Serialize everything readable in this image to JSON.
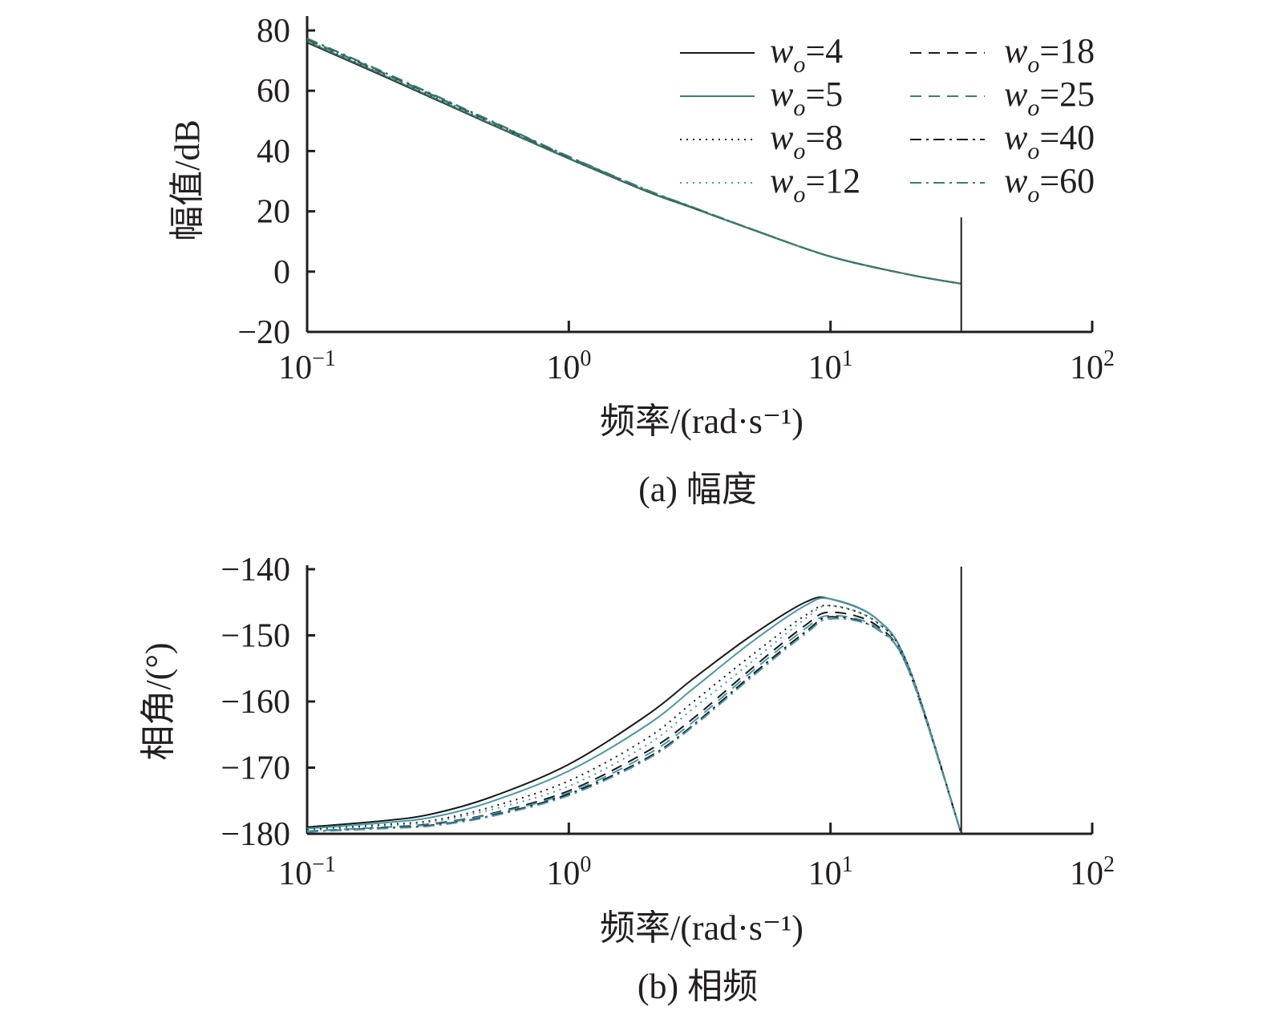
{
  "chart_data": [
    {
      "type": "line",
      "id": "magnitude",
      "caption": "(a) 幅度",
      "xlabel": "频率/(rad·s⁻¹)",
      "ylabel": "幅值/dB",
      "xscale": "log",
      "xlim": [
        0.1,
        100
      ],
      "ylim": [
        -20,
        80
      ],
      "yticks": [
        80,
        60,
        40,
        20,
        0,
        -20
      ],
      "ytick_labels": [
        "80",
        "60",
        "40",
        "20",
        "0",
        "−20"
      ],
      "xticks": [
        0.1,
        1,
        10,
        100
      ],
      "xtick_labels": [
        {
          "base": "10",
          "exp": "−1"
        },
        {
          "base": "10",
          "exp": "0"
        },
        {
          "base": "10",
          "exp": "1"
        },
        {
          "base": "10",
          "exp": "2"
        }
      ],
      "vline_x": 31.6,
      "vline_range": [
        18,
        -20
      ],
      "legend_position": "top-right",
      "x": [
        0.1,
        0.2,
        0.5,
        1,
        2,
        3,
        5,
        10,
        20,
        31.6
      ],
      "series": [
        {
          "name": "w_o=4",
          "label_var": "w",
          "label_sub": "o",
          "label_eq": "=4",
          "color": "#1a1a1a",
          "dash": "solid",
          "values": [
            76,
            64.5,
            49,
            37.5,
            26.5,
            21,
            14,
            5,
            -1,
            -4
          ]
        },
        {
          "name": "w_o=5",
          "label_var": "w",
          "label_sub": "o",
          "label_eq": "=5",
          "color": "#3a7f73",
          "dash": "solid",
          "values": [
            76.3,
            64.8,
            49.2,
            37.6,
            26.6,
            21,
            14,
            5,
            -1,
            -4
          ]
        },
        {
          "name": "w_o=8",
          "label_var": "w",
          "label_sub": "o",
          "label_eq": "=8",
          "color": "#1a1a1a",
          "dash": "dotted",
          "values": [
            76.6,
            65.1,
            49.5,
            37.8,
            26.7,
            21.1,
            14,
            5,
            -1,
            -4
          ]
        },
        {
          "name": "w_o=12",
          "label_var": "w",
          "label_sub": "o",
          "label_eq": "=12",
          "color": "#4f9e93",
          "dash": "dotted",
          "values": [
            76.8,
            65.3,
            49.7,
            37.9,
            26.8,
            21.1,
            14,
            5,
            -1,
            -4
          ]
        },
        {
          "name": "w_o=18",
          "label_var": "w",
          "label_sub": "o",
          "label_eq": "=18",
          "color": "#1a1a1a",
          "dash": "dashed",
          "values": [
            77,
            65.5,
            49.9,
            38,
            26.9,
            21.2,
            14.1,
            5,
            -1,
            -4
          ]
        },
        {
          "name": "w_o=25",
          "label_var": "w",
          "label_sub": "o",
          "label_eq": "=25",
          "color": "#3a7f73",
          "dash": "dashed",
          "values": [
            77.1,
            65.6,
            50,
            38.1,
            26.9,
            21.2,
            14.1,
            5,
            -1,
            -4
          ]
        },
        {
          "name": "w_o=40",
          "label_var": "w",
          "label_sub": "o",
          "label_eq": "=40",
          "color": "#1a1a1a",
          "dash": "dashdot",
          "values": [
            77.3,
            65.8,
            50.1,
            38.2,
            27,
            21.2,
            14.1,
            5,
            -1,
            -4
          ]
        },
        {
          "name": "w_o=60",
          "label_var": "w",
          "label_sub": "o",
          "label_eq": "=60",
          "color": "#3a7f73",
          "dash": "dashdot",
          "values": [
            77.4,
            65.9,
            50.2,
            38.2,
            27,
            21.3,
            14.1,
            5,
            -1,
            -4
          ]
        }
      ]
    },
    {
      "type": "line",
      "id": "phase",
      "caption": "(b) 相频",
      "xlabel": "频率/(rad·s⁻¹)",
      "ylabel": "相角/(°)",
      "xscale": "log",
      "xlim": [
        0.1,
        100
      ],
      "ylim": [
        -180,
        -140
      ],
      "yticks": [
        -140,
        -150,
        -160,
        -170,
        -180
      ],
      "ytick_labels": [
        "−140",
        "−150",
        "−160",
        "−170",
        "−180"
      ],
      "xticks": [
        0.1,
        1,
        10,
        100
      ],
      "xtick_labels": [
        {
          "base": "10",
          "exp": "−1"
        },
        {
          "base": "10",
          "exp": "0"
        },
        {
          "base": "10",
          "exp": "1"
        },
        {
          "base": "10",
          "exp": "2"
        }
      ],
      "vline_x": 31.6,
      "vline_range": [
        -139.6,
        -180
      ],
      "x": [
        0.1,
        0.2,
        0.3,
        0.5,
        1,
        2,
        3,
        5,
        8,
        10,
        15,
        20,
        31.6
      ],
      "series": [
        {
          "name": "w_o=4",
          "color": "#1a1a1a",
          "dash": "solid",
          "values": [
            -179,
            -178,
            -177,
            -174.5,
            -169.5,
            -162,
            -156.5,
            -150,
            -145,
            -144.5,
            -147.5,
            -155,
            -180
          ]
        },
        {
          "name": "w_o=5",
          "color": "#4a98a4",
          "dash": "solid",
          "values": [
            -179.2,
            -178.3,
            -177.5,
            -175.2,
            -170.5,
            -163.5,
            -158,
            -151,
            -145.5,
            -144.5,
            -147.5,
            -155,
            -180
          ]
        },
        {
          "name": "w_o=8",
          "color": "#1a1a1a",
          "dash": "dotted",
          "values": [
            -179.4,
            -178.6,
            -178,
            -176,
            -172,
            -165.5,
            -160,
            -153,
            -147,
            -145.5,
            -148,
            -155,
            -180
          ]
        },
        {
          "name": "w_o=12",
          "color": "#4a98a4",
          "dash": "dotted",
          "values": [
            -179.5,
            -178.8,
            -178.2,
            -176.4,
            -172.8,
            -166.5,
            -161,
            -154,
            -147.5,
            -145.5,
            -148,
            -155,
            -180
          ]
        },
        {
          "name": "w_o=18",
          "color": "#1a1a1a",
          "dash": "dashed",
          "values": [
            -179.6,
            -179,
            -178.5,
            -177,
            -173.5,
            -167.5,
            -162.5,
            -155,
            -148.5,
            -146.5,
            -148.5,
            -155.5,
            -180
          ]
        },
        {
          "name": "w_o=25",
          "color": "#4a98a4",
          "dash": "dashed",
          "values": [
            -179.6,
            -179,
            -178.6,
            -177.1,
            -173.8,
            -168,
            -163,
            -155.5,
            -149,
            -147,
            -148.8,
            -155.5,
            -180
          ]
        },
        {
          "name": "w_o=40",
          "color": "#1a1a1a",
          "dash": "dashdot",
          "values": [
            -179.7,
            -179.1,
            -178.7,
            -177.3,
            -174,
            -168.5,
            -163.5,
            -156,
            -149.5,
            -147.2,
            -149,
            -155.5,
            -180
          ]
        },
        {
          "name": "w_o=60",
          "color": "#4a98a4",
          "dash": "dashdot",
          "values": [
            -179.7,
            -179.2,
            -178.8,
            -177.4,
            -174.2,
            -168.7,
            -163.7,
            -156.3,
            -149.8,
            -147.5,
            -149,
            -155.5,
            -180
          ]
        }
      ]
    }
  ]
}
